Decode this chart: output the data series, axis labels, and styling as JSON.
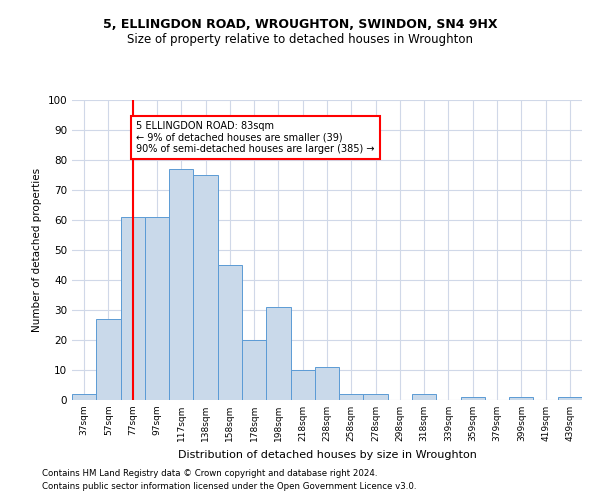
{
  "title1": "5, ELLINGDON ROAD, WROUGHTON, SWINDON, SN4 9HX",
  "title2": "Size of property relative to detached houses in Wroughton",
  "xlabel": "Distribution of detached houses by size in Wroughton",
  "ylabel": "Number of detached properties",
  "footnote1": "Contains HM Land Registry data © Crown copyright and database right 2024.",
  "footnote2": "Contains public sector information licensed under the Open Government Licence v3.0.",
  "bar_labels": [
    "37sqm",
    "57sqm",
    "77sqm",
    "97sqm",
    "117sqm",
    "138sqm",
    "158sqm",
    "178sqm",
    "198sqm",
    "218sqm",
    "238sqm",
    "258sqm",
    "278sqm",
    "298sqm",
    "318sqm",
    "339sqm",
    "359sqm",
    "379sqm",
    "399sqm",
    "419sqm",
    "439sqm"
  ],
  "bar_values": [
    2,
    27,
    61,
    61,
    77,
    75,
    45,
    20,
    31,
    10,
    11,
    2,
    2,
    0,
    2,
    0,
    1,
    0,
    1,
    0,
    1
  ],
  "bar_color": "#c9d9ea",
  "bar_edge_color": "#5b9bd5",
  "grid_color": "#d0d8e8",
  "red_line_x": 2.0,
  "annotation_text": "5 ELLINGDON ROAD: 83sqm\n← 9% of detached houses are smaller (39)\n90% of semi-detached houses are larger (385) →",
  "annotation_box_color": "white",
  "annotation_box_edge": "red",
  "red_line_color": "red",
  "ylim": [
    0,
    100
  ],
  "yticks": [
    0,
    10,
    20,
    30,
    40,
    50,
    60,
    70,
    80,
    90,
    100
  ],
  "background_color": "white"
}
